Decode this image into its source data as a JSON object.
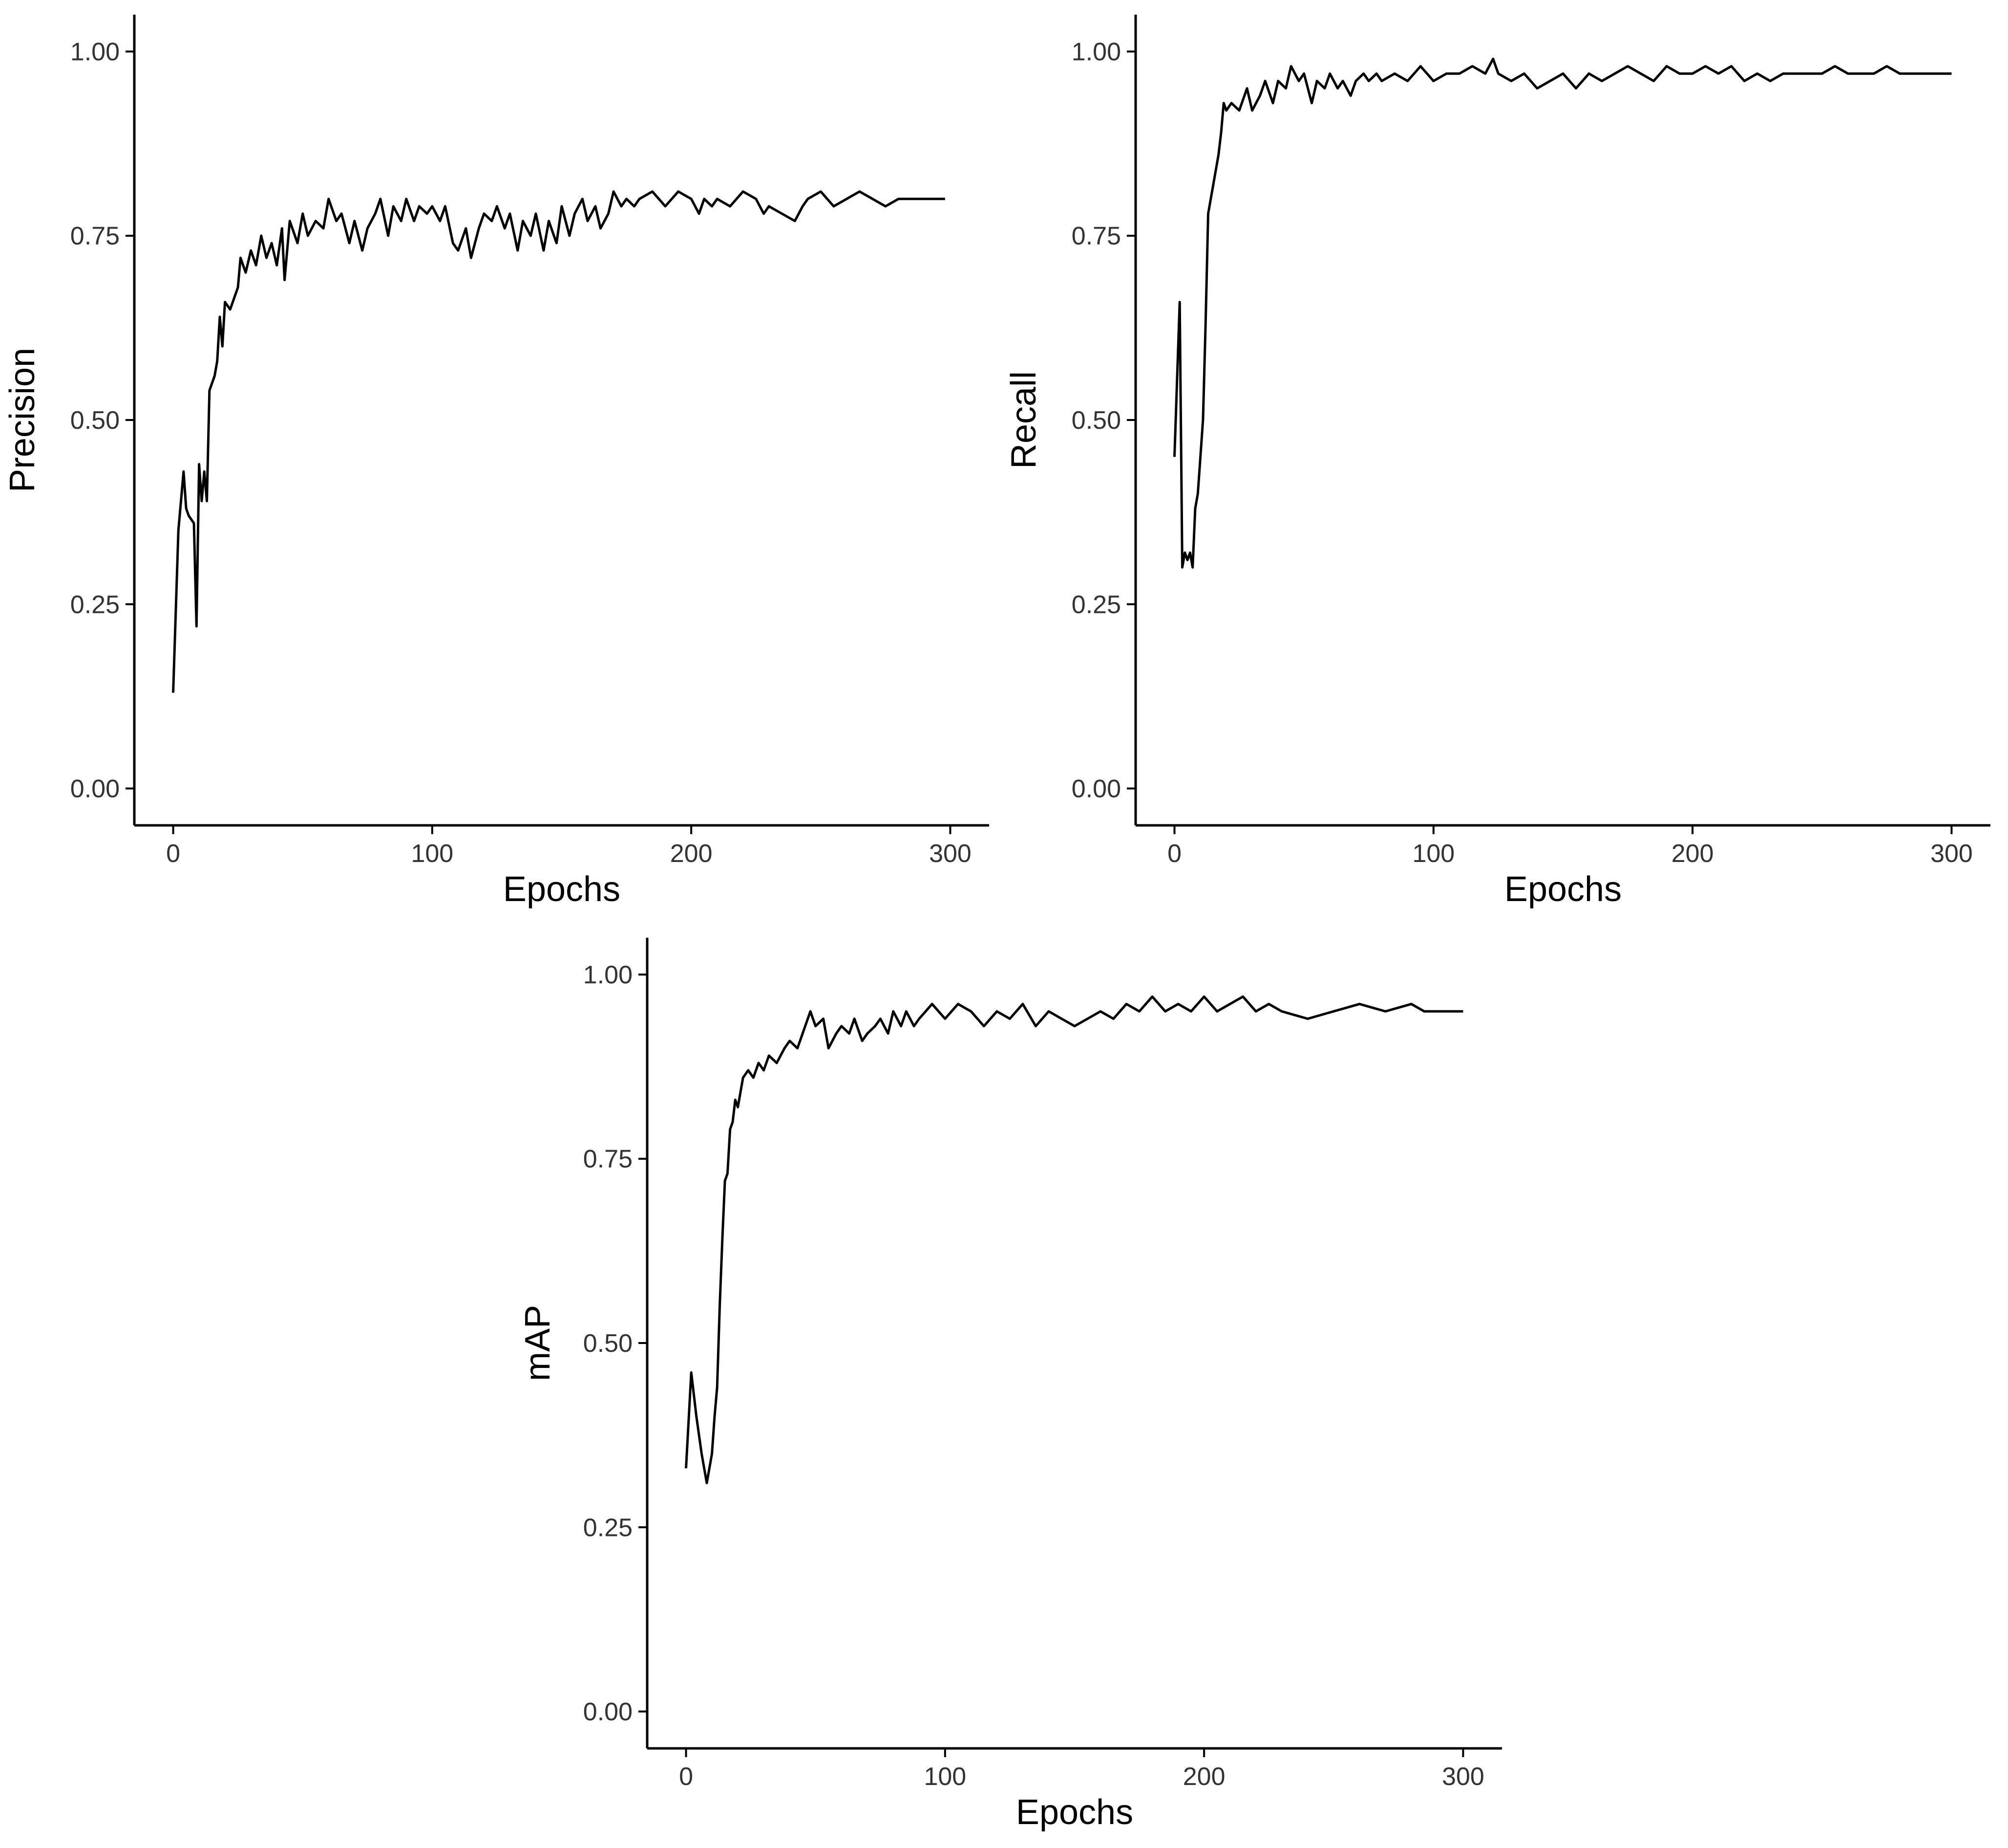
{
  "chart_data": [
    {
      "type": "line",
      "panel": "precision",
      "xlabel": "Epochs",
      "ylabel": "Precision",
      "xlim": [
        -15,
        315
      ],
      "ylim": [
        -0.05,
        1.05
      ],
      "xticks": [
        0,
        100,
        200,
        300
      ],
      "xtick_labels": [
        "0",
        "100",
        "200",
        "300"
      ],
      "yticks": [
        0,
        0.25,
        0.5,
        0.75,
        1.0
      ],
      "ytick_labels": [
        "0.00",
        "0.25",
        "0.50",
        "0.75",
        "1.00"
      ],
      "grid": false,
      "series": [
        {
          "x": [
            0,
            2,
            4,
            5,
            6,
            8,
            9,
            10,
            11,
            12,
            13,
            14,
            16,
            17,
            18,
            19,
            20,
            22,
            24,
            25,
            26,
            28,
            30,
            32,
            34,
            36,
            38,
            40,
            42,
            43,
            45,
            48,
            50,
            52,
            55,
            58,
            60,
            63,
            65,
            68,
            70,
            73,
            75,
            78,
            80,
            83,
            85,
            88,
            90,
            93,
            95,
            98,
            100,
            103,
            105,
            108,
            110,
            113,
            115,
            118,
            120,
            123,
            125,
            128,
            130,
            133,
            135,
            138,
            140,
            143,
            145,
            148,
            150,
            153,
            155,
            158,
            160,
            163,
            165,
            168,
            170,
            173,
            175,
            178,
            180,
            185,
            190,
            195,
            200,
            203,
            205,
            208,
            210,
            215,
            220,
            225,
            228,
            230,
            235,
            240,
            243,
            245,
            250,
            255,
            260,
            265,
            270,
            275,
            280,
            285,
            290,
            295,
            298
          ],
          "y": [
            0.13,
            0.35,
            0.43,
            0.38,
            0.37,
            0.36,
            0.22,
            0.44,
            0.39,
            0.43,
            0.39,
            0.54,
            0.56,
            0.58,
            0.64,
            0.6,
            0.66,
            0.65,
            0.67,
            0.68,
            0.72,
            0.7,
            0.73,
            0.71,
            0.75,
            0.72,
            0.74,
            0.71,
            0.76,
            0.69,
            0.77,
            0.74,
            0.78,
            0.75,
            0.77,
            0.76,
            0.8,
            0.77,
            0.78,
            0.74,
            0.77,
            0.73,
            0.76,
            0.78,
            0.8,
            0.75,
            0.79,
            0.77,
            0.8,
            0.77,
            0.79,
            0.78,
            0.79,
            0.77,
            0.79,
            0.74,
            0.73,
            0.76,
            0.72,
            0.76,
            0.78,
            0.77,
            0.79,
            0.76,
            0.78,
            0.73,
            0.77,
            0.75,
            0.78,
            0.73,
            0.77,
            0.74,
            0.79,
            0.75,
            0.78,
            0.8,
            0.77,
            0.79,
            0.76,
            0.78,
            0.81,
            0.79,
            0.8,
            0.79,
            0.8,
            0.81,
            0.79,
            0.81,
            0.8,
            0.78,
            0.8,
            0.79,
            0.8,
            0.79,
            0.81,
            0.8,
            0.78,
            0.79,
            0.78,
            0.77,
            0.79,
            0.8,
            0.81,
            0.79,
            0.8,
            0.81,
            0.8,
            0.79,
            0.8,
            0.8,
            0.8,
            0.8,
            0.8
          ]
        }
      ]
    },
    {
      "type": "line",
      "panel": "recall",
      "xlabel": "Epochs",
      "ylabel": "Recall",
      "xlim": [
        -15,
        315
      ],
      "ylim": [
        -0.05,
        1.05
      ],
      "xticks": [
        0,
        100,
        200,
        300
      ],
      "xtick_labels": [
        "0",
        "100",
        "200",
        "300"
      ],
      "yticks": [
        0,
        0.25,
        0.5,
        0.75,
        1.0
      ],
      "ytick_labels": [
        "0.00",
        "0.25",
        "0.50",
        "0.75",
        "1.00"
      ],
      "grid": false,
      "series": [
        {
          "x": [
            0,
            2,
            3,
            4,
            5,
            6,
            7,
            8,
            9,
            10,
            11,
            12,
            13,
            15,
            17,
            18,
            19,
            20,
            22,
            25,
            28,
            30,
            33,
            35,
            38,
            40,
            43,
            45,
            48,
            50,
            53,
            55,
            58,
            60,
            63,
            65,
            68,
            70,
            73,
            75,
            78,
            80,
            85,
            90,
            95,
            100,
            105,
            110,
            115,
            120,
            123,
            125,
            130,
            135,
            140,
            145,
            150,
            155,
            160,
            165,
            170,
            175,
            180,
            185,
            190,
            195,
            200,
            205,
            210,
            215,
            220,
            225,
            230,
            235,
            240,
            250,
            255,
            260,
            265,
            270,
            275,
            280,
            285,
            290,
            300
          ],
          "y": [
            0.45,
            0.66,
            0.3,
            0.32,
            0.31,
            0.32,
            0.3,
            0.38,
            0.4,
            0.45,
            0.5,
            0.63,
            0.78,
            0.82,
            0.86,
            0.89,
            0.93,
            0.92,
            0.93,
            0.92,
            0.95,
            0.92,
            0.94,
            0.96,
            0.93,
            0.96,
            0.95,
            0.98,
            0.96,
            0.97,
            0.93,
            0.96,
            0.95,
            0.97,
            0.95,
            0.96,
            0.94,
            0.96,
            0.97,
            0.96,
            0.97,
            0.96,
            0.97,
            0.96,
            0.98,
            0.96,
            0.97,
            0.97,
            0.98,
            0.97,
            0.99,
            0.97,
            0.96,
            0.97,
            0.95,
            0.96,
            0.97,
            0.95,
            0.97,
            0.96,
            0.97,
            0.98,
            0.97,
            0.96,
            0.98,
            0.97,
            0.97,
            0.98,
            0.97,
            0.98,
            0.96,
            0.97,
            0.96,
            0.97,
            0.97,
            0.97,
            0.98,
            0.97,
            0.97,
            0.97,
            0.98,
            0.97,
            0.97,
            0.97,
            0.97
          ]
        }
      ]
    },
    {
      "type": "line",
      "panel": "map",
      "xlabel": "Epochs",
      "ylabel": "mAP",
      "xlim": [
        -15,
        315
      ],
      "ylim": [
        -0.05,
        1.05
      ],
      "xticks": [
        0,
        100,
        200,
        300
      ],
      "xtick_labels": [
        "0",
        "100",
        "200",
        "300"
      ],
      "yticks": [
        0,
        0.25,
        0.5,
        0.75,
        1.0
      ],
      "ytick_labels": [
        "0.00",
        "0.25",
        "0.50",
        "0.75",
        "1.00"
      ],
      "grid": false,
      "series": [
        {
          "x": [
            0,
            2,
            4,
            6,
            8,
            10,
            11,
            12,
            13,
            14,
            15,
            16,
            17,
            18,
            19,
            20,
            22,
            24,
            26,
            28,
            30,
            32,
            35,
            38,
            40,
            43,
            45,
            48,
            50,
            53,
            55,
            58,
            60,
            63,
            65,
            68,
            70,
            73,
            75,
            78,
            80,
            83,
            85,
            88,
            90,
            95,
            100,
            105,
            110,
            115,
            120,
            125,
            130,
            135,
            140,
            145,
            150,
            155,
            160,
            165,
            170,
            175,
            180,
            185,
            190,
            195,
            200,
            205,
            210,
            215,
            220,
            225,
            230,
            240,
            250,
            260,
            270,
            280,
            285,
            290,
            300
          ],
          "y": [
            0.33,
            0.46,
            0.4,
            0.35,
            0.31,
            0.35,
            0.4,
            0.44,
            0.55,
            0.64,
            0.72,
            0.73,
            0.79,
            0.8,
            0.83,
            0.82,
            0.86,
            0.87,
            0.86,
            0.88,
            0.87,
            0.89,
            0.88,
            0.9,
            0.91,
            0.9,
            0.92,
            0.95,
            0.93,
            0.94,
            0.9,
            0.92,
            0.93,
            0.92,
            0.94,
            0.91,
            0.92,
            0.93,
            0.94,
            0.92,
            0.95,
            0.93,
            0.95,
            0.93,
            0.94,
            0.96,
            0.94,
            0.96,
            0.95,
            0.93,
            0.95,
            0.94,
            0.96,
            0.93,
            0.95,
            0.94,
            0.93,
            0.94,
            0.95,
            0.94,
            0.96,
            0.95,
            0.97,
            0.95,
            0.96,
            0.95,
            0.97,
            0.95,
            0.96,
            0.97,
            0.95,
            0.96,
            0.95,
            0.94,
            0.95,
            0.96,
            0.95,
            0.96,
            0.95,
            0.95,
            0.95
          ]
        }
      ]
    }
  ]
}
